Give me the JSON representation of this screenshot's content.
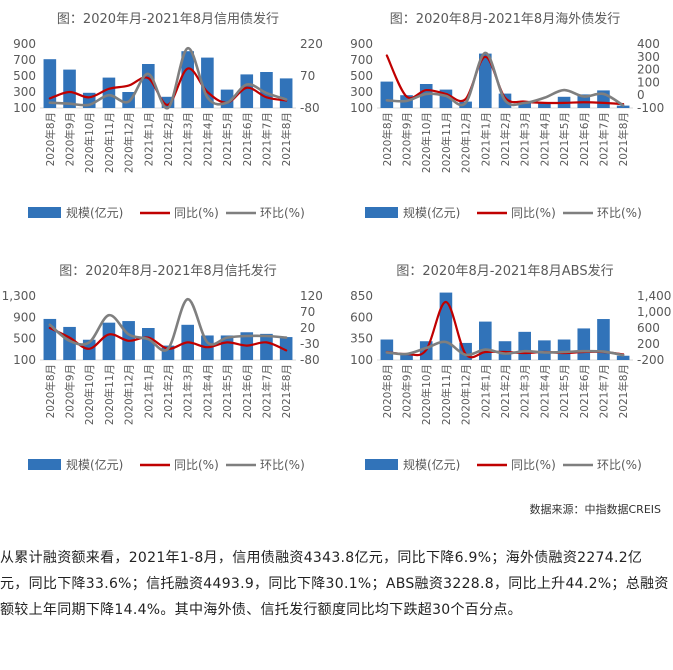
{
  "legend": {
    "bar": "规模(亿元)",
    "yoy": "同比(%)",
    "mom": "环比(%)"
  },
  "source": "数据来源：中指数据CREIS",
  "paragraph": "从累计融资额来看，2021年1-8月，信用债融资4343.8亿元，同比下降6.9%；海外债融资2274.2亿元，同比下降33.6%；信托融资4493.9，同比下降30.1%；ABS融资3228.8，同比上升44.2%；总融资额较上年同期下降14.4%。其中海外债、信托发行额度同比均下跌超30个百分点。",
  "colors": {
    "bar": "#3173b9",
    "yoy": "#c00000",
    "mom": "#7f7f7f"
  },
  "chart_data": [
    {
      "type": "bar",
      "title": "图：2020年月-2021年8月信用债发行",
      "categories": [
        "2020年8月",
        "2020年9月",
        "2020年10月",
        "2020年11月",
        "2020年12月",
        "2021年1月",
        "2021年2月",
        "2021年3月",
        "2021年4月",
        "2021年5月",
        "2021年6月",
        "2021年7月",
        "2021年8月"
      ],
      "left_ticks": [
        "900",
        "700",
        "500",
        "300",
        "100"
      ],
      "left_range": [
        100,
        900
      ],
      "right_ticks": [
        "220",
        "70",
        "-80"
      ],
      "right_range": [
        -80,
        220
      ],
      "series": [
        {
          "name": "规模(亿元)",
          "axis": "left",
          "kind": "bar",
          "values": [
            710,
            580,
            290,
            480,
            300,
            650,
            240,
            810,
            730,
            330,
            520,
            550,
            470
          ]
        },
        {
          "name": "同比(%)",
          "axis": "right",
          "kind": "line",
          "values": [
            -35,
            -5,
            -30,
            10,
            25,
            60,
            -65,
            105,
            -5,
            -55,
            15,
            -30,
            -45
          ]
        },
        {
          "name": "环比(%)",
          "axis": "right",
          "kind": "line",
          "values": [
            -55,
            -60,
            -65,
            -20,
            -50,
            80,
            -80,
            200,
            -30,
            -55,
            30,
            -10,
            -40
          ]
        }
      ]
    },
    {
      "type": "bar",
      "title": "图：2020年8月-2021年8月海外债发行",
      "categories": [
        "2020年8月",
        "2020年9月",
        "2020年10月",
        "2020年11月",
        "2020年12月",
        "2021年1月",
        "2021年2月",
        "2021年3月",
        "2021年4月",
        "2021年5月",
        "2021年6月",
        "2021年7月",
        "2021年8月"
      ],
      "left_ticks": [
        "900",
        "700",
        "500",
        "300",
        "100"
      ],
      "left_range": [
        100,
        900
      ],
      "right_ticks": [
        "400",
        "300",
        "200",
        "100",
        "0",
        "-100"
      ],
      "right_range": [
        -100,
        400
      ],
      "series": [
        {
          "name": "规模(亿元)",
          "axis": "left",
          "kind": "bar",
          "values": [
            430,
            260,
            400,
            330,
            180,
            780,
            280,
            170,
            160,
            240,
            270,
            320,
            130
          ]
        },
        {
          "name": "同比(%)",
          "axis": "right",
          "kind": "line",
          "values": [
            310,
            -10,
            40,
            10,
            -30,
            300,
            -20,
            -50,
            -60,
            -60,
            -55,
            -60,
            -70
          ]
        },
        {
          "name": "环比(%)",
          "axis": "right",
          "kind": "line",
          "values": [
            -40,
            -45,
            10,
            -5,
            -60,
            330,
            -40,
            -60,
            -20,
            40,
            -10,
            10,
            -80
          ]
        }
      ]
    },
    {
      "type": "bar",
      "title": "图：2020年8月-2021年8月信托发行",
      "categories": [
        "2020年8月",
        "2020年9月",
        "2020年10月",
        "2020年11月",
        "2020年12月",
        "2021年1月",
        "2021年2月",
        "2021年3月",
        "2021年4月",
        "2021年5月",
        "2021年6月",
        "2021年7月",
        "2021年8月"
      ],
      "left_ticks": [
        "1,300",
        "900",
        "500",
        "100"
      ],
      "left_range": [
        100,
        1300
      ],
      "right_ticks": [
        "120",
        "70",
        "20",
        "-30",
        "-80"
      ],
      "right_range": [
        -80,
        120
      ],
      "series": [
        {
          "name": "规模(亿元)",
          "axis": "left",
          "kind": "bar",
          "values": [
            870,
            720,
            480,
            800,
            830,
            700,
            370,
            760,
            560,
            560,
            620,
            590,
            530
          ]
        },
        {
          "name": "同比(%)",
          "axis": "right",
          "kind": "line",
          "values": [
            20,
            -10,
            -45,
            0,
            -20,
            -10,
            -45,
            -25,
            -40,
            -25,
            -35,
            -25,
            -50
          ]
        },
        {
          "name": "环比(%)",
          "axis": "right",
          "kind": "line",
          "values": [
            30,
            -20,
            -25,
            60,
            0,
            -15,
            -45,
            110,
            -25,
            -10,
            -5,
            -5,
            -10
          ]
        }
      ]
    },
    {
      "type": "bar",
      "title": "图：2020年8月-2021年8月ABS发行",
      "categories": [
        "2020年8月",
        "2020年9月",
        "2020年10月",
        "2020年11月",
        "2020年12月",
        "2021年1月",
        "2021年2月",
        "2021年3月",
        "2021年4月",
        "2021年5月",
        "2021年6月",
        "2021年7月",
        "2021年8月"
      ],
      "left_ticks": [
        "850",
        "600",
        "350",
        "100"
      ],
      "left_range": [
        100,
        850
      ],
      "right_ticks": [
        "1,400",
        "1,000",
        "600",
        "200",
        "-200"
      ],
      "right_range": [
        -200,
        1400
      ],
      "series": [
        {
          "name": "规模(亿元)",
          "axis": "left",
          "kind": "bar",
          "values": [
            340,
            170,
            320,
            890,
            300,
            550,
            320,
            430,
            330,
            340,
            470,
            580,
            150
          ]
        },
        {
          "name": "同比(%)",
          "axis": "right",
          "kind": "line",
          "values": [
            0,
            -50,
            50,
            1250,
            -50,
            0,
            0,
            -25,
            0,
            -25,
            0,
            0,
            -60
          ]
        },
        {
          "name": "环比(%)",
          "axis": "right",
          "kind": "line",
          "values": [
            -10,
            -50,
            100,
            250,
            -70,
            60,
            -40,
            20,
            -10,
            0,
            20,
            10,
            -80
          ]
        }
      ]
    }
  ]
}
